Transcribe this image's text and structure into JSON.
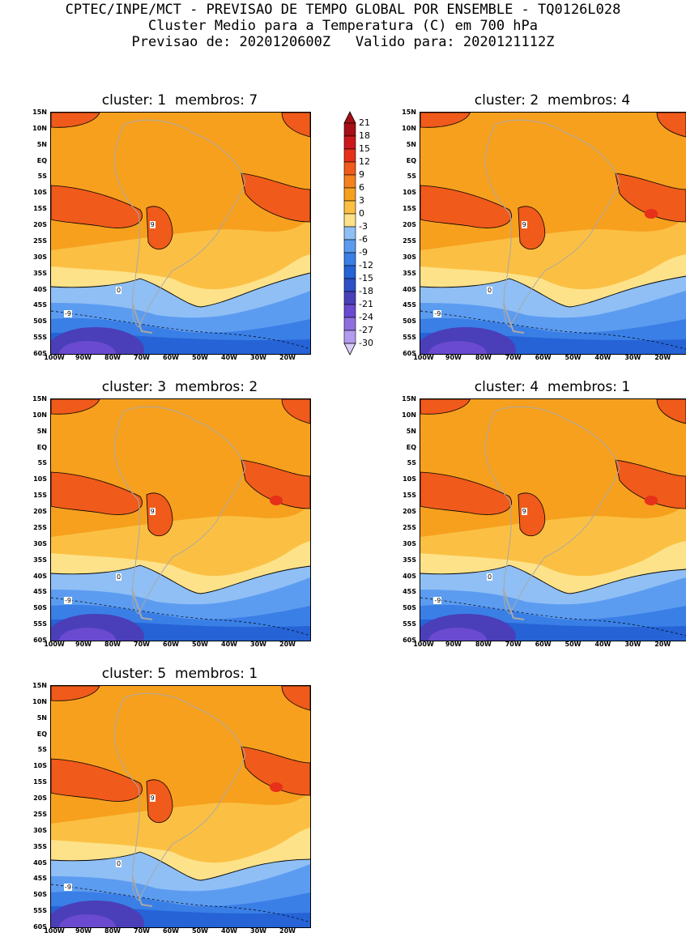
{
  "header": {
    "line1": "CPTEC/INPE/MCT - PREVISAO DE TEMPO GLOBAL POR ENSEMBLE - TQ0126L028",
    "line2": "Cluster Medio para a Temperatura (C) em 700 hPa",
    "line3": "Previsao de: 2020120600Z   Valido para: 2020121112Z"
  },
  "lat_ticks": [
    "15N",
    "10N",
    "5N",
    "EQ",
    "5S",
    "10S",
    "15S",
    "20S",
    "25S",
    "30S",
    "35S",
    "40S",
    "45S",
    "50S",
    "55S",
    "60S"
  ],
  "lon_ticks": [
    "100W",
    "90W",
    "80W",
    "70W",
    "60W",
    "50W",
    "40W",
    "30W",
    "20W"
  ],
  "panels": [
    {
      "title": "cluster: 1  membros: 7"
    },
    {
      "title": "cluster: 2  membros: 4"
    },
    {
      "title": "cluster: 3  membros: 2"
    },
    {
      "title": "cluster: 4  membros: 1"
    },
    {
      "title": "cluster: 5  membros: 1"
    }
  ],
  "colorbar": {
    "labels": [
      "21",
      "18",
      "15",
      "12",
      "9",
      "6",
      "3",
      "0",
      "-3",
      "-6",
      "-9",
      "-12",
      "-15",
      "-18",
      "-21",
      "-24",
      "-27",
      "-30"
    ],
    "colors": [
      "#a50f15",
      "#cb181d",
      "#e6301a",
      "#f05a1a",
      "#f5821f",
      "#f7a01e",
      "#fbc043",
      "#fde28a",
      "#8fbff5",
      "#5c9cf0",
      "#3a7fe6",
      "#2563d6",
      "#2e4fc8",
      "#4a3fb8",
      "#6a4ad0",
      "#8f6fe0",
      "#b39cf0",
      "#d8ccf8"
    ]
  },
  "contour_labels": {
    "nine": "9",
    "zero": "0",
    "minus_nine": "-9"
  }
}
